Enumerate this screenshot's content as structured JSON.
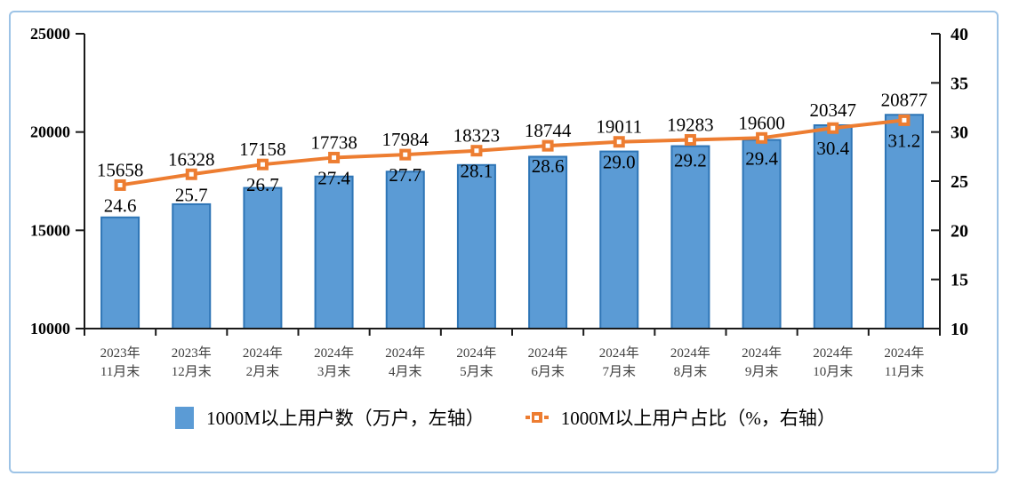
{
  "chart_data": {
    "type": "bar",
    "categories": [
      "2023年11月末",
      "2023年12月末",
      "2024年2月末",
      "2024年3月末",
      "2024年4月末",
      "2024年5月末",
      "2024年6月末",
      "2024年7月末",
      "2024年8月末",
      "2024年9月末",
      "2024年10月末",
      "2024年11月末"
    ],
    "series": [
      {
        "name": "1000M以上用户数（万户，左轴）",
        "type": "bar",
        "axis": "left",
        "values": [
          15658,
          16328,
          17158,
          17738,
          17984,
          18323,
          18744,
          19011,
          19283,
          19600,
          20347,
          20877
        ],
        "color": "#5B9BD5",
        "border_color": "#2E75B6"
      },
      {
        "name": "1000M以上用户占比（%，右轴）",
        "type": "line",
        "axis": "right",
        "values_display": [
          "24.6",
          "25.7",
          "26.7",
          "27.4",
          "27.7",
          "28.1",
          "28.6",
          "29.0",
          "29.2",
          "29.4",
          "30.4",
          "31.2"
        ],
        "color": "#ED7D31",
        "marker_inner_color": "#ffffff"
      }
    ],
    "left_axis": {
      "min": 10000,
      "max": 25000,
      "ticks": [
        25000,
        20000,
        15000,
        10000
      ]
    },
    "right_axis": {
      "min": 10,
      "max": 40,
      "ticks": [
        40,
        35,
        30,
        25,
        20,
        15,
        10
      ]
    },
    "grid": "off",
    "legend_position": "bottom",
    "title": "",
    "axis_color": "#1a1a1a",
    "label_color": "#000000",
    "category_label_color": "#404040"
  }
}
